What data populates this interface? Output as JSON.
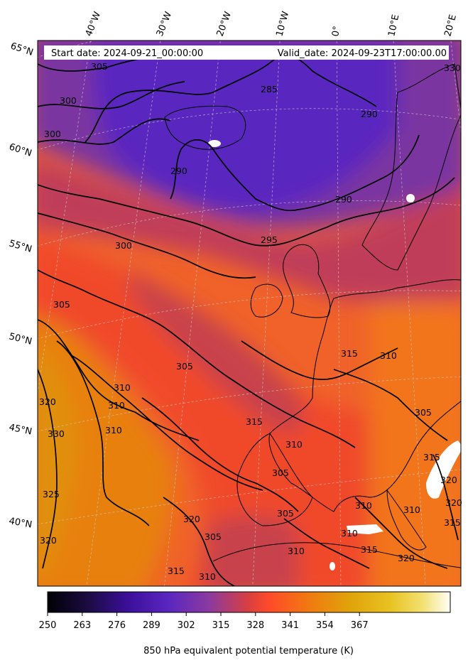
{
  "header": {
    "start_date": "Start date: 2024-09-21_00:00:00",
    "valid_date": "Valid_date: 2024-09-23T17:00:00.00"
  },
  "longitude_labels": [
    "40°W",
    "30°W",
    "20°W",
    "10°W",
    "0°",
    "10°E",
    "20°E"
  ],
  "latitude_labels": [
    "65°N",
    "60°N",
    "55°N",
    "50°N",
    "45°N",
    "40°N"
  ],
  "contour_labels": [
    "305",
    "300",
    "300",
    "285",
    "290",
    "290",
    "290",
    "295",
    "300",
    "305",
    "305",
    "310",
    "310",
    "310",
    "315",
    "310",
    "305",
    "315",
    "310",
    "305",
    "305",
    "310",
    "315",
    "310",
    "315",
    "320",
    "330",
    "325",
    "320",
    "320",
    "315",
    "310",
    "320",
    "315",
    "320",
    "310",
    "305",
    "320",
    "330",
    "310"
  ],
  "colorbar": {
    "ticks": [
      "250",
      "263",
      "276",
      "289",
      "302",
      "315",
      "328",
      "341",
      "354",
      "367"
    ],
    "label": "850 hPa equivalent potential temperature (K)",
    "colors": [
      "#000004",
      "#1b0c41",
      "#3b0f9a",
      "#5a26c0",
      "#8a3aa0",
      "#c8434c",
      "#ff4a2a",
      "#f07a10",
      "#e0a30a",
      "#e8c220",
      "#f2e070",
      "#fffff0"
    ]
  }
}
